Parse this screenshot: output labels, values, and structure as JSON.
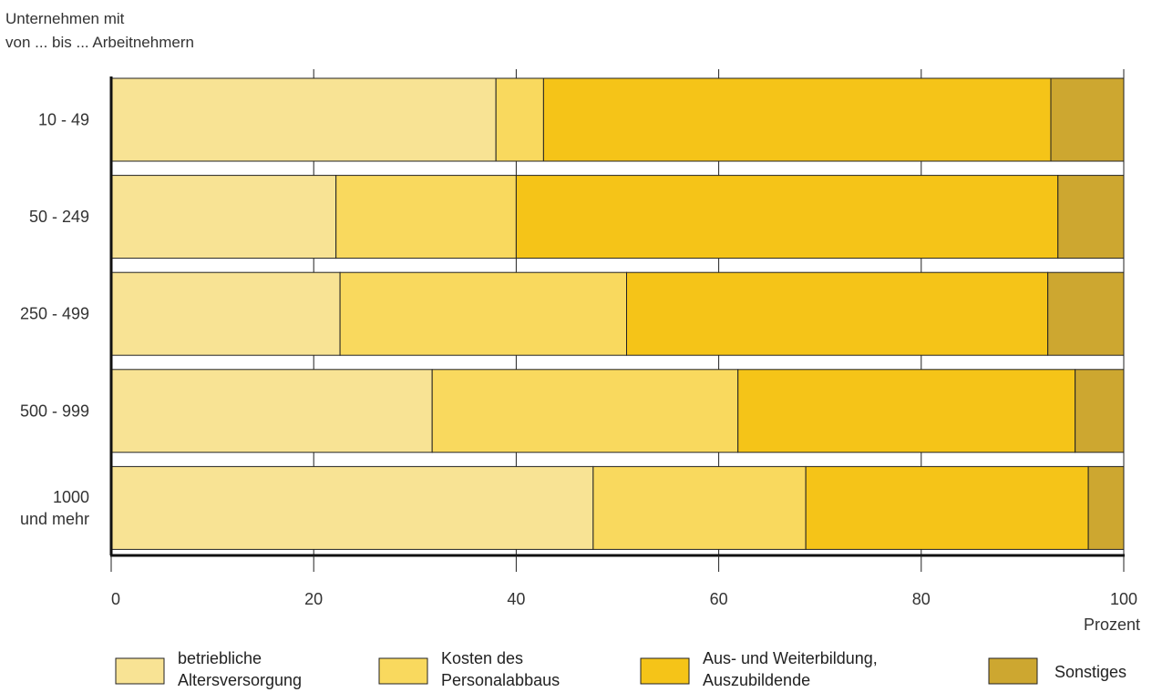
{
  "chart_data": {
    "type": "bar",
    "orientation": "horizontal",
    "stacked": true,
    "ylabel_lines": [
      "Unternehmen mit",
      "von ... bis ... Arbeitnehmern"
    ],
    "xlabel": "Prozent",
    "xlim": [
      0,
      100
    ],
    "xticks": [
      0,
      20,
      40,
      60,
      80,
      100
    ],
    "grid": "vertical",
    "legend_position": "bottom",
    "categories": [
      [
        "10 - 49"
      ],
      [
        "50 - 249"
      ],
      [
        "250 - 499"
      ],
      [
        "500 - 999"
      ],
      [
        "1000",
        "und mehr"
      ]
    ],
    "series": [
      {
        "name": "betriebliche Altersversorgung",
        "legend_lines": [
          "betriebliche",
          "Altersversorgung"
        ],
        "color": "#F8E394",
        "values": [
          38,
          22.2,
          22.6,
          31.7,
          47.6
        ]
      },
      {
        "name": "Kosten des Personalabbaus",
        "legend_lines": [
          "Kosten des",
          "Personalabbaus"
        ],
        "color": "#F9D95E",
        "values": [
          4.7,
          17.8,
          28.3,
          30.2,
          21
        ]
      },
      {
        "name": "Aus- und Weiterbildung, Auszubildende",
        "legend_lines": [
          "Aus- und Weiterbildung,",
          "Auszubildende"
        ],
        "color": "#F5C418",
        "values": [
          50.1,
          53.5,
          41.6,
          33.3,
          27.9
        ]
      },
      {
        "name": "Sonstiges",
        "legend_lines": [
          "Sonstiges"
        ],
        "color": "#CDA730",
        "values": [
          7.2,
          6.5,
          7.5,
          4.8,
          3.5
        ]
      }
    ]
  }
}
